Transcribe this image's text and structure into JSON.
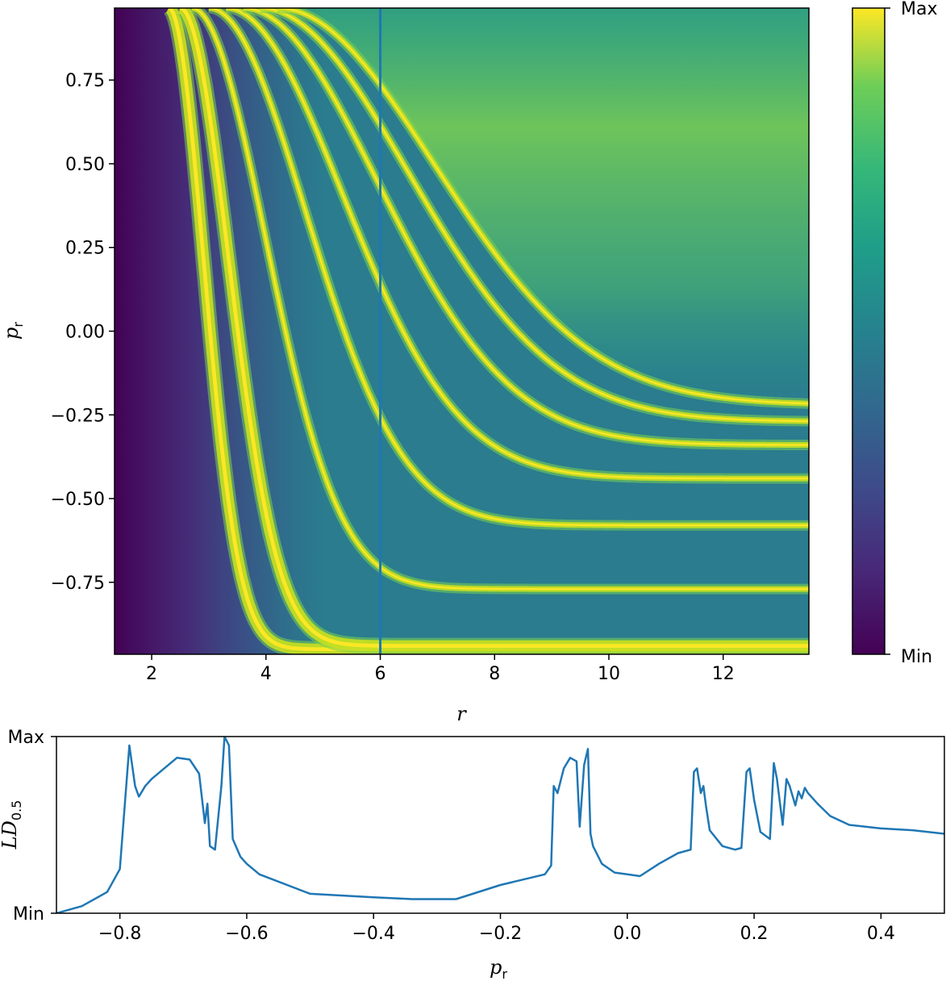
{
  "chart_data": [
    {
      "type": "heatmap",
      "description_colormap": "viridis",
      "xlabel": "r",
      "ylabel": "p",
      "ylabel_sub": "r",
      "xlim": [
        1.35,
        13.5
      ],
      "ylim": [
        -0.965,
        0.965
      ],
      "xticks": [
        2,
        4,
        6,
        8,
        10,
        12
      ],
      "xtick_labels": [
        "2",
        "4",
        "6",
        "8",
        "10",
        "12"
      ],
      "yticks": [
        0.75,
        0.5,
        0.25,
        0.0,
        -0.25,
        -0.5,
        -0.75
      ],
      "ytick_labels": [
        "0.75",
        "0.50",
        "0.25",
        "0.00",
        "−0.25",
        "−0.50",
        "−0.75"
      ],
      "vertical_line": {
        "x": 6,
        "color": "#1f77b4"
      },
      "colorbar": {
        "max_label": "Max",
        "min_label": "Min"
      },
      "ridges": [
        {
          "r_top": 2.3,
          "r_bottom": 4.1,
          "pr_end": -0.95
        },
        {
          "r_top": 2.5,
          "r_bottom": 5.0,
          "pr_end": -0.94
        },
        {
          "r_top": 2.7,
          "r_bottom": 6.5,
          "pr_end": -0.77
        },
        {
          "r_top": 3.0,
          "r_bottom": 8.0,
          "pr_end": -0.58
        },
        {
          "r_top": 3.3,
          "r_bottom": 9.3,
          "pr_end": -0.44
        },
        {
          "r_top": 3.6,
          "r_bottom": 10.5,
          "pr_end": -0.34
        },
        {
          "r_top": 3.9,
          "r_bottom": 11.5,
          "pr_end": -0.27
        },
        {
          "r_top": 4.2,
          "r_bottom": 12.3,
          "pr_end": -0.22
        }
      ]
    },
    {
      "type": "line",
      "xlabel": "p",
      "xlabel_sub": "r",
      "ylabel": "LD",
      "ylabel_sub": "0.5",
      "xlim": [
        -0.9,
        0.5
      ],
      "ylim": [
        0,
        1
      ],
      "xticks": [
        -0.8,
        -0.6,
        -0.4,
        -0.2,
        0.0,
        0.2,
        0.4
      ],
      "xtick_labels": [
        "−0.8",
        "−0.6",
        "−0.4",
        "−0.2",
        "0.0",
        "0.2",
        "0.4"
      ],
      "ytick_labels": [
        "Max",
        "Min"
      ],
      "color": "#1f77b4",
      "x": [
        -0.9,
        -0.86,
        -0.82,
        -0.8,
        -0.785,
        -0.776,
        -0.77,
        -0.76,
        -0.75,
        -0.73,
        -0.71,
        -0.69,
        -0.675,
        -0.666,
        -0.662,
        -0.658,
        -0.65,
        -0.64,
        -0.635,
        -0.628,
        -0.622,
        -0.61,
        -0.6,
        -0.58,
        -0.5,
        -0.4,
        -0.34,
        -0.3,
        -0.27,
        -0.2,
        -0.13,
        -0.12,
        -0.116,
        -0.11,
        -0.1,
        -0.09,
        -0.08,
        -0.075,
        -0.068,
        -0.062,
        -0.058,
        -0.054,
        -0.04,
        -0.02,
        0.0,
        0.02,
        0.05,
        0.08,
        0.1,
        0.105,
        0.11,
        0.116,
        0.12,
        0.124,
        0.13,
        0.15,
        0.17,
        0.18,
        0.188,
        0.193,
        0.2,
        0.21,
        0.225,
        0.231,
        0.236,
        0.245,
        0.251,
        0.256,
        0.265,
        0.27,
        0.275,
        0.28,
        0.285,
        0.3,
        0.32,
        0.35,
        0.4,
        0.45,
        0.5
      ],
      "y": [
        0.0,
        0.04,
        0.12,
        0.25,
        0.95,
        0.72,
        0.66,
        0.72,
        0.76,
        0.82,
        0.88,
        0.87,
        0.79,
        0.51,
        0.62,
        0.38,
        0.36,
        0.72,
        1.0,
        0.95,
        0.42,
        0.32,
        0.28,
        0.22,
        0.11,
        0.09,
        0.08,
        0.08,
        0.08,
        0.16,
        0.22,
        0.27,
        0.72,
        0.68,
        0.82,
        0.88,
        0.86,
        0.49,
        0.84,
        0.93,
        0.45,
        0.38,
        0.28,
        0.23,
        0.22,
        0.21,
        0.28,
        0.34,
        0.36,
        0.8,
        0.82,
        0.68,
        0.72,
        0.61,
        0.47,
        0.38,
        0.36,
        0.37,
        0.8,
        0.82,
        0.64,
        0.46,
        0.42,
        0.85,
        0.76,
        0.5,
        0.76,
        0.72,
        0.61,
        0.69,
        0.65,
        0.71,
        0.68,
        0.62,
        0.55,
        0.5,
        0.48,
        0.47,
        0.45
      ]
    }
  ]
}
